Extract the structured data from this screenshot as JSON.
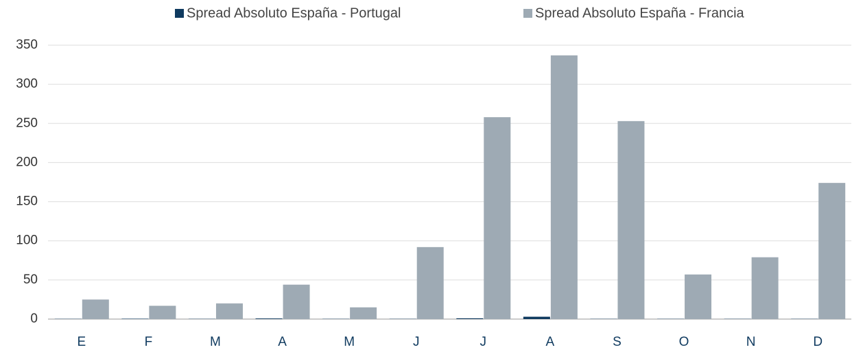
{
  "chart_data": {
    "type": "bar",
    "categories": [
      "E",
      "F",
      "M",
      "A",
      "M",
      "J",
      "J",
      "A",
      "S",
      "O",
      "N",
      "D"
    ],
    "series": [
      {
        "name": "Spread Absoluto España - Portugal",
        "color": "#0f3a5f",
        "values": [
          0.3,
          0.5,
          0.3,
          0.8,
          0.3,
          0.3,
          1,
          3,
          0.3,
          0.3,
          0.3,
          0.3
        ]
      },
      {
        "name": "Spread Absoluto España - Francia",
        "color": "#9eaab4",
        "values": [
          25,
          17,
          20,
          44,
          15,
          92,
          258,
          337,
          253,
          57,
          79,
          174
        ]
      }
    ],
    "ylim": [
      0,
      350
    ],
    "yticks": [
      0,
      50,
      100,
      150,
      200,
      250,
      300,
      350
    ],
    "grid": true,
    "legend": "top"
  }
}
